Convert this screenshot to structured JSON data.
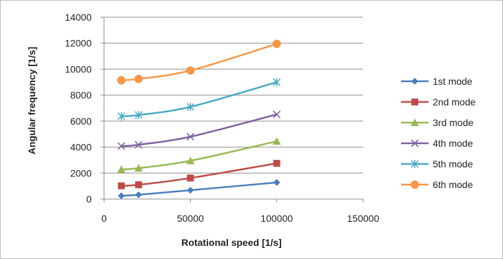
{
  "chart_data": {
    "type": "line",
    "title": "",
    "xlabel": "Rotational speed [1/s]",
    "ylabel": "Angular frequency [1/s]",
    "xlim": [
      0,
      150000
    ],
    "ylim": [
      0,
      14000
    ],
    "xticks": [
      0,
      50000,
      100000,
      150000
    ],
    "yticks": [
      0,
      2000,
      4000,
      6000,
      8000,
      10000,
      12000,
      14000
    ],
    "grid": "horizontal",
    "legend": "right",
    "x": [
      10000,
      20000,
      50000,
      100000
    ],
    "series": [
      {
        "name": "1st mode",
        "color": "#4a7ebb",
        "marker": "diamond",
        "values": [
          250,
          330,
          680,
          1280
        ]
      },
      {
        "name": "2nd mode",
        "color": "#be4b48",
        "marker": "square",
        "values": [
          1020,
          1100,
          1620,
          2750
        ]
      },
      {
        "name": "3rd mode",
        "color": "#98b954",
        "marker": "triangle",
        "values": [
          2280,
          2380,
          2950,
          4450
        ]
      },
      {
        "name": "4th mode",
        "color": "#7d60a0",
        "marker": "x",
        "values": [
          4080,
          4180,
          4800,
          6520
        ]
      },
      {
        "name": "5th mode",
        "color": "#46aac5",
        "marker": "star",
        "values": [
          6370,
          6470,
          7100,
          9000
        ]
      },
      {
        "name": "6th mode",
        "color": "#f79646",
        "marker": "circle",
        "values": [
          9150,
          9250,
          9900,
          11950
        ]
      }
    ]
  }
}
